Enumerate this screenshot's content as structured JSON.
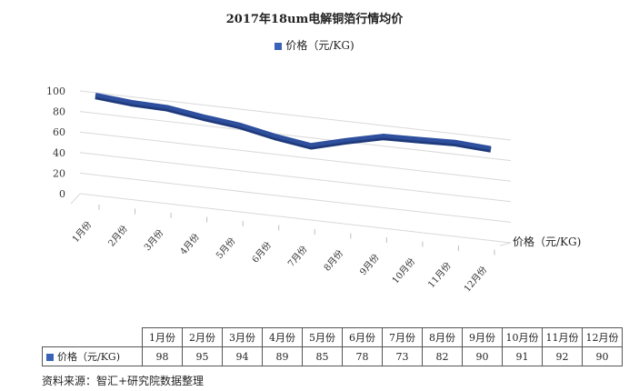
{
  "chart_data": {
    "type": "line",
    "title": "2017年18um电解铜箔行情均价",
    "categories": [
      "1月份",
      "2月份",
      "3月份",
      "4月份",
      "5月份",
      "6月份",
      "7月份",
      "8月份",
      "9月份",
      "10月份",
      "11月份",
      "12月份"
    ],
    "series": [
      {
        "name": "价格（元/KG)",
        "values": [
          98,
          95,
          94,
          89,
          85,
          78,
          73,
          82,
          90,
          91,
          92,
          90
        ]
      }
    ],
    "ylim": [
      0,
      100
    ],
    "yticks": [
      0,
      20,
      40,
      60,
      80,
      100
    ],
    "y_tick_labels": [
      "0",
      "20",
      "40",
      "60",
      "80",
      "100"
    ],
    "grid": true,
    "legend": "top",
    "style": "3d-line",
    "depth_axis_label": "价格（元/KG)",
    "line_color": "#2e4f9e"
  },
  "table": {
    "row_label": "价格（元/KG)"
  },
  "source": "资料来源：智汇+研究院数据整理"
}
